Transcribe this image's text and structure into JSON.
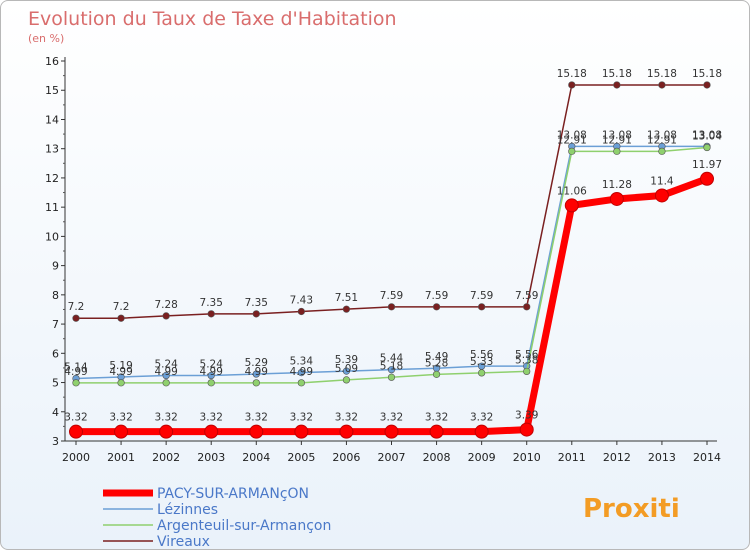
{
  "title": "Evolution du Taux de Taxe d'Habitation",
  "subtitle": "(en %)",
  "logo": "Proxiti",
  "chart_data": {
    "type": "line",
    "title": "Evolution du Taux de Taxe d'Habitation",
    "ylabel": "(en %)",
    "xlabel": "",
    "x": [
      2000,
      2001,
      2002,
      2003,
      2004,
      2005,
      2006,
      2007,
      2008,
      2009,
      2010,
      2011,
      2012,
      2013,
      2014
    ],
    "ylim": [
      3,
      16
    ],
    "yticks": [
      3,
      4,
      5,
      6,
      7,
      8,
      9,
      10,
      11,
      12,
      13,
      14,
      15,
      16
    ],
    "grid": false,
    "legend_position": "bottom-left",
    "series": [
      {
        "name": "Vireaux",
        "color": "#7a2020",
        "values": [
          7.2,
          7.2,
          7.28,
          7.35,
          7.35,
          7.43,
          7.51,
          7.59,
          7.59,
          7.59,
          7.59,
          15.18,
          15.18,
          15.18,
          15.18
        ]
      },
      {
        "name": "Lézinnes",
        "color": "#6b9fd6",
        "values": [
          5.14,
          5.19,
          5.24,
          5.24,
          5.29,
          5.34,
          5.39,
          5.44,
          5.49,
          5.56,
          5.56,
          13.08,
          13.08,
          13.08,
          13.08
        ]
      },
      {
        "name": "Argenteuil-sur-Armançon",
        "color": "#8fd06e",
        "values": [
          4.99,
          4.99,
          4.99,
          4.99,
          4.99,
          4.99,
          5.09,
          5.18,
          5.28,
          5.33,
          5.38,
          12.91,
          12.91,
          12.91,
          13.04
        ]
      },
      {
        "name": "PACY-SUR-ARMANçON",
        "color": "#ff0000",
        "values": [
          3.32,
          3.32,
          3.32,
          3.32,
          3.32,
          3.32,
          3.32,
          3.32,
          3.32,
          3.32,
          3.39,
          11.06,
          11.28,
          11.4,
          11.97
        ]
      }
    ],
    "legend_order": [
      "PACY-SUR-ARMANçON",
      "Lézinnes",
      "Argenteuil-sur-Armançon",
      "Vireaux"
    ]
  }
}
